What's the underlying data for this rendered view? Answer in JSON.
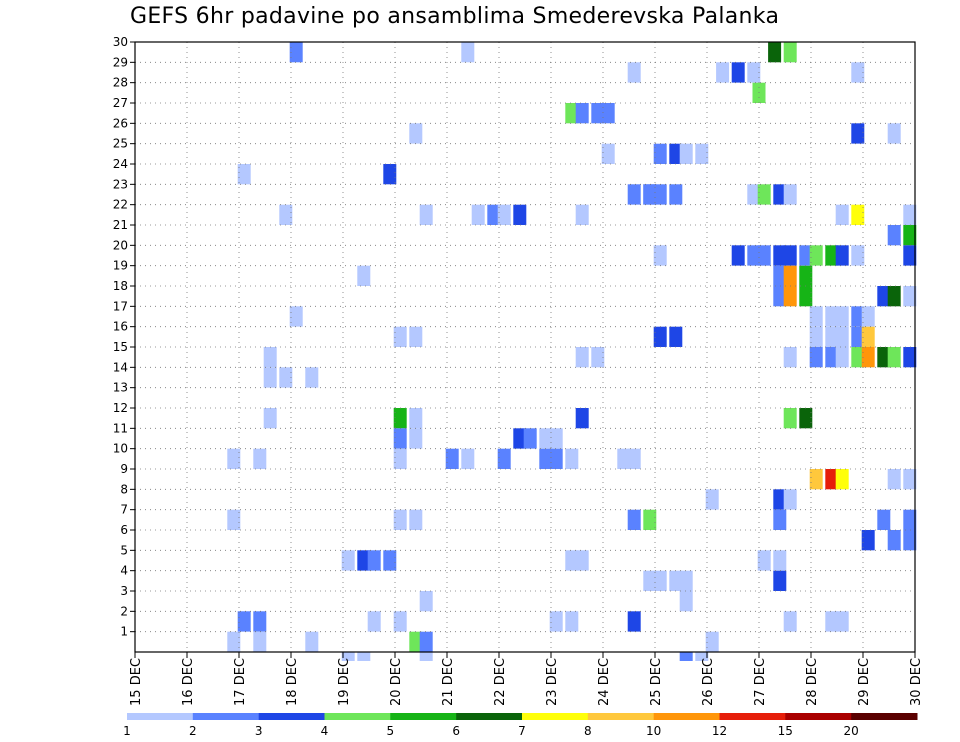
{
  "chart_data": {
    "type": "heatmap",
    "title": "GEFS 6hr padavine po ansamblima Smederevska Palanka",
    "x_tick_labels": [
      "15 DEC",
      "16 DEC",
      "17 DEC",
      "18 DEC",
      "19 DEC",
      "20 DEC",
      "21 DEC",
      "22 DEC",
      "23 DEC",
      "24 DEC",
      "25 DEC",
      "26 DEC",
      "27 DEC",
      "28 DEC",
      "29 DEC",
      "30 DEC"
    ],
    "x_range_days": [
      15,
      30
    ],
    "y_tick_labels": [
      "1",
      "2",
      "3",
      "4",
      "5",
      "6",
      "7",
      "8",
      "9",
      "10",
      "11",
      "12",
      "13",
      "14",
      "15",
      "16",
      "17",
      "18",
      "19",
      "20",
      "21",
      "22",
      "23",
      "24",
      "25",
      "26",
      "27",
      "28",
      "29",
      "30"
    ],
    "y_range_members": [
      1,
      30
    ],
    "grid": "dotted",
    "legend": {
      "position": "bottom",
      "thresholds": [
        "1",
        "2",
        "3",
        "4",
        "5",
        "6",
        "7",
        "8",
        "10",
        "12",
        "15",
        "20"
      ],
      "colors": [
        "#b4c8ff",
        "#5a82ff",
        "#1e46e6",
        "#6ee65a",
        "#16b416",
        "#0a640a",
        "#ffff0a",
        "#ffc83c",
        "#ff960a",
        "#e61e0a",
        "#aa0000",
        "#5a0000"
      ]
    },
    "cells": [
      [
        30,
        18.1,
        2
      ],
      [
        30,
        21.4,
        1
      ],
      [
        30,
        27.3,
        6
      ],
      [
        30,
        27.6,
        4
      ],
      [
        29,
        24.6,
        1
      ],
      [
        29,
        26.3,
        1
      ],
      [
        29,
        26.6,
        3
      ],
      [
        29,
        26.9,
        1
      ],
      [
        29,
        28.9,
        1
      ],
      [
        28,
        27.0,
        4
      ],
      [
        27,
        23.4,
        4
      ],
      [
        27,
        23.6,
        2
      ],
      [
        27,
        23.9,
        2
      ],
      [
        27,
        24.1,
        2
      ],
      [
        26,
        20.4,
        1
      ],
      [
        26,
        28.9,
        3
      ],
      [
        26,
        29.6,
        1
      ],
      [
        25,
        24.1,
        1
      ],
      [
        25,
        25.1,
        2
      ],
      [
        25,
        25.4,
        3
      ],
      [
        25,
        25.6,
        1
      ],
      [
        25,
        25.9,
        1
      ],
      [
        24,
        17.1,
        1
      ],
      [
        24,
        19.9,
        3
      ],
      [
        23,
        24.9,
        2
      ],
      [
        23,
        24.9,
        2
      ],
      [
        23,
        24.6,
        2
      ],
      [
        23,
        25.1,
        2
      ],
      [
        23,
        25.4,
        2
      ],
      [
        23,
        26.9,
        1
      ],
      [
        23,
        27.1,
        4
      ],
      [
        23,
        27.4,
        3
      ],
      [
        23,
        27.6,
        1
      ],
      [
        22,
        17.9,
        1
      ],
      [
        22,
        20.6,
        1
      ],
      [
        22,
        21.6,
        1
      ],
      [
        22,
        21.9,
        2
      ],
      [
        22,
        22.1,
        1
      ],
      [
        22,
        22.4,
        3
      ],
      [
        22,
        23.6,
        1
      ],
      [
        22,
        28.6,
        1
      ],
      [
        22,
        28.9,
        7
      ],
      [
        22,
        29.9,
        1
      ],
      [
        21,
        29.6,
        2
      ],
      [
        21,
        29.9,
        5
      ],
      [
        20,
        25.1,
        1
      ],
      [
        20,
        26.6,
        3
      ],
      [
        20,
        26.9,
        2
      ],
      [
        20,
        27.1,
        2
      ],
      [
        20,
        27.4,
        3
      ],
      [
        20,
        27.6,
        3
      ],
      [
        20,
        27.9,
        2
      ],
      [
        20,
        28.1,
        4
      ],
      [
        20,
        28.4,
        5
      ],
      [
        20,
        28.6,
        3
      ],
      [
        20,
        28.9,
        1
      ],
      [
        20,
        29.9,
        3
      ],
      [
        19,
        19.4,
        1
      ],
      [
        19,
        27.4,
        2
      ],
      [
        19,
        27.6,
        10
      ],
      [
        19,
        27.9,
        5
      ],
      [
        18,
        27.4,
        2
      ],
      [
        18,
        27.6,
        10
      ],
      [
        18,
        27.9,
        5
      ],
      [
        18,
        29.4,
        3
      ],
      [
        18,
        29.6,
        6
      ],
      [
        18,
        29.9,
        1
      ],
      [
        17,
        18.1,
        1
      ],
      [
        17,
        28.1,
        1
      ],
      [
        17,
        28.4,
        1
      ],
      [
        17,
        28.6,
        1
      ],
      [
        17,
        28.9,
        2
      ],
      [
        17,
        29.1,
        1
      ],
      [
        16,
        20.1,
        1
      ],
      [
        16,
        20.4,
        1
      ],
      [
        16,
        25.1,
        3
      ],
      [
        16,
        25.4,
        3
      ],
      [
        16,
        28.1,
        1
      ],
      [
        16,
        28.4,
        1
      ],
      [
        16,
        28.6,
        1
      ],
      [
        16,
        28.9,
        2
      ],
      [
        16,
        29.1,
        8
      ],
      [
        15,
        17.6,
        1
      ],
      [
        15,
        23.6,
        1
      ],
      [
        15,
        23.9,
        1
      ],
      [
        15,
        27.6,
        1
      ],
      [
        15,
        28.1,
        2
      ],
      [
        15,
        28.4,
        2
      ],
      [
        15,
        28.6,
        1
      ],
      [
        15,
        28.9,
        4
      ],
      [
        15,
        29.1,
        10
      ],
      [
        15,
        29.4,
        6
      ],
      [
        15,
        29.6,
        4
      ],
      [
        15,
        29.9,
        3
      ],
      [
        14,
        17.6,
        1
      ],
      [
        14,
        17.9,
        1
      ],
      [
        14,
        18.4,
        1
      ],
      [
        12,
        17.6,
        1
      ],
      [
        12,
        20.1,
        5
      ],
      [
        12,
        20.4,
        1
      ],
      [
        12,
        23.6,
        3
      ],
      [
        12,
        27.6,
        4
      ],
      [
        12,
        27.9,
        6
      ],
      [
        11,
        20.1,
        2
      ],
      [
        11,
        20.4,
        1
      ],
      [
        11,
        22.4,
        3
      ],
      [
        11,
        22.6,
        2
      ],
      [
        11,
        22.9,
        1
      ],
      [
        11,
        23.1,
        1
      ],
      [
        10,
        16.9,
        1
      ],
      [
        10,
        17.4,
        1
      ],
      [
        10,
        20.1,
        1
      ],
      [
        10,
        21.1,
        2
      ],
      [
        10,
        21.4,
        1
      ],
      [
        10,
        22.1,
        2
      ],
      [
        10,
        22.9,
        2
      ],
      [
        10,
        23.1,
        2
      ],
      [
        10,
        23.4,
        1
      ],
      [
        10,
        24.4,
        1
      ],
      [
        10,
        24.6,
        1
      ],
      [
        9,
        28.1,
        8
      ],
      [
        9,
        28.4,
        12
      ],
      [
        9,
        28.6,
        7
      ],
      [
        9,
        29.6,
        1
      ],
      [
        9,
        29.9,
        1
      ],
      [
        8,
        26.1,
        1
      ],
      [
        8,
        27.4,
        3
      ],
      [
        8,
        27.6,
        1
      ],
      [
        7,
        16.9,
        1
      ],
      [
        7,
        20.1,
        1
      ],
      [
        7,
        20.4,
        1
      ],
      [
        7,
        24.6,
        2
      ],
      [
        7,
        24.9,
        4
      ],
      [
        7,
        27.4,
        2
      ],
      [
        7,
        29.4,
        2
      ],
      [
        7,
        29.9,
        2
      ],
      [
        6,
        29.1,
        3
      ],
      [
        6,
        29.6,
        2
      ],
      [
        6,
        29.9,
        2
      ],
      [
        5,
        19.1,
        1
      ],
      [
        5,
        19.4,
        3
      ],
      [
        5,
        19.6,
        2
      ],
      [
        5,
        19.9,
        2
      ],
      [
        5,
        23.4,
        1
      ],
      [
        5,
        23.6,
        1
      ],
      [
        5,
        27.1,
        1
      ],
      [
        5,
        27.4,
        1
      ],
      [
        4,
        24.9,
        1
      ],
      [
        4,
        25.1,
        1
      ],
      [
        4,
        25.4,
        1
      ],
      [
        4,
        25.6,
        1
      ],
      [
        4,
        27.4,
        3
      ],
      [
        3,
        20.6,
        1
      ],
      [
        3,
        25.6,
        1
      ],
      [
        2,
        17.1,
        2
      ],
      [
        2,
        17.4,
        2
      ],
      [
        2,
        19.6,
        1
      ],
      [
        2,
        20.1,
        1
      ],
      [
        2,
        23.1,
        1
      ],
      [
        2,
        23.4,
        1
      ],
      [
        2,
        24.6,
        3
      ],
      [
        2,
        27.6,
        1
      ],
      [
        2,
        28.4,
        1
      ],
      [
        2,
        28.6,
        1
      ],
      [
        1,
        16.9,
        1
      ],
      [
        1,
        17.4,
        1
      ],
      [
        1,
        18.4,
        1
      ],
      [
        1,
        20.4,
        4
      ],
      [
        1,
        20.6,
        2
      ],
      [
        1,
        26.1,
        1
      ],
      [
        0,
        19.1,
        1
      ],
      [
        0,
        19.4,
        1
      ],
      [
        0,
        20.6,
        1
      ],
      [
        0,
        25.6,
        2
      ],
      [
        0,
        25.9,
        1
      ]
    ]
  }
}
